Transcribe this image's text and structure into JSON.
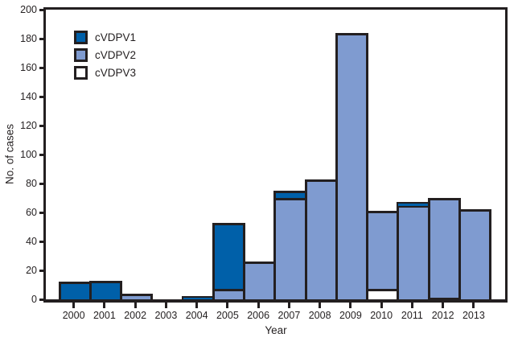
{
  "chart_data": {
    "type": "bar",
    "stacked": true,
    "title": "",
    "xlabel": "Year",
    "ylabel": "No. of cases",
    "categories": [
      "2000",
      "2001",
      "2002",
      "2003",
      "2004",
      "2005",
      "2006",
      "2007",
      "2008",
      "2009",
      "2010",
      "2011",
      "2012",
      "2013"
    ],
    "series": [
      {
        "name": "cVDPV1",
        "color": "#0060a9",
        "values": [
          12,
          13,
          0,
          0,
          2,
          46,
          0,
          5,
          0,
          0,
          0,
          2,
          0,
          0
        ]
      },
      {
        "name": "cVDPV2",
        "color": "#7f9bd0",
        "values": [
          0,
          0,
          4,
          0,
          0,
          7,
          26,
          70,
          83,
          184,
          54,
          65,
          69,
          62
        ]
      },
      {
        "name": "cVDPV3",
        "color": "#ffffff",
        "values": [
          0,
          0,
          0,
          0,
          0,
          0,
          0,
          0,
          0,
          0,
          7,
          0,
          1,
          0
        ]
      }
    ],
    "stack_order_bottom_to_top": [
      "cVDPV3",
      "cVDPV2",
      "cVDPV1"
    ],
    "totals_by_year": [
      12,
      13,
      4,
      0,
      2,
      53,
      26,
      75,
      83,
      184,
      61,
      67,
      70,
      62
    ],
    "y_ticks": [
      0,
      20,
      40,
      60,
      80,
      100,
      120,
      140,
      160,
      180,
      200
    ],
    "ylim": [
      0,
      200
    ],
    "grid": false,
    "frame": true,
    "legend_position": "top-left"
  },
  "colors": {
    "axis": "#231f20",
    "text": "#231f20",
    "background": "#ffffff",
    "cvdpv1": "#0060a9",
    "cvdpv2": "#7f9bd0",
    "cvdpv3": "#ffffff"
  }
}
